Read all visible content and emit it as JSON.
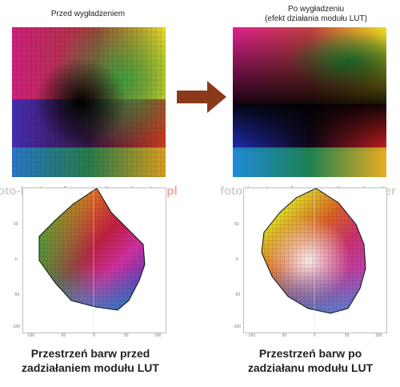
{
  "left": {
    "caption": "Przed wygładzeniem",
    "bottom": {
      "line1": "Przestrzeń barw przed",
      "line2": "zadziałaniem modułu LUT"
    }
  },
  "right": {
    "caption_line1": "Po wygładzeniu",
    "caption_line2": "(efekt działania modułu LUT)",
    "bottom": {
      "line1": "Przestrzeń barw po",
      "line2": "zadziałanu modułu LUT"
    }
  },
  "watermark": {
    "brand": "foto-kurier",
    "tld": ".pl"
  },
  "axes": {
    "y_ticks": [
      "100",
      "50",
      "0",
      "-50",
      "-100"
    ],
    "x_ticks": [
      "-100",
      "-50",
      "0",
      "50",
      "100"
    ],
    "axis_letter": "b"
  },
  "colors": {
    "arrow": "#8a3a1a"
  }
}
